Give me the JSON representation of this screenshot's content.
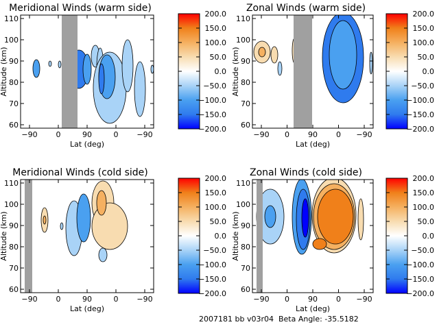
{
  "colorscale": {
    "stops": [
      {
        "v": -200,
        "c": "#0000ff"
      },
      {
        "v": -150,
        "c": "#2f7bee"
      },
      {
        "v": -100,
        "c": "#4aa0f0"
      },
      {
        "v": -50,
        "c": "#a9d3f7"
      },
      {
        "v": 0,
        "c": "#ffffff"
      },
      {
        "v": 50,
        "c": "#f8dcb0"
      },
      {
        "v": 100,
        "c": "#f5b060"
      },
      {
        "v": 150,
        "c": "#f0801a"
      },
      {
        "v": 200,
        "c": "#ff0000"
      }
    ],
    "shade_color": "#a0a0a0"
  },
  "footer": {
    "text": "2007181 bb v03r04  Beta Angle: -35.5182"
  },
  "chart_data": [
    {
      "type": "heatmap",
      "title": "Meridional Winds (warm side)",
      "xlabel": "Lat (deg)",
      "ylabel": "Altitude (km)",
      "x_ticks": [
        "−90",
        "0",
        "90",
        "0",
        "−90"
      ],
      "y_ticks": [
        "60",
        "70",
        "80",
        "90",
        "100",
        "110"
      ],
      "ylim": [
        60,
        110
      ],
      "colorbar_ticks": [
        "200.0",
        "150.0",
        "100.0",
        "50.0",
        "0.0",
        "−50.0",
        "−100.0",
        "−150.0",
        "−200.0"
      ],
      "colorbar_range": [
        -200,
        200
      ],
      "shaded_x_ranges": [
        [
          60,
          83
        ]
      ],
      "blobs": [
        {
          "cx": 53,
          "cy": 100,
          "rx": 5,
          "ry": 13,
          "v": -100
        },
        {
          "cx": 73,
          "cy": 93,
          "rx": 2,
          "ry": 4,
          "v": -50
        },
        {
          "cx": 87,
          "cy": 94,
          "rx": 2,
          "ry": 5,
          "v": -50
        },
        {
          "cx": 100,
          "cy": 92,
          "rx": 2,
          "ry": 5,
          "v": -100
        },
        {
          "cx": 108,
          "cy": 95,
          "rx": 3,
          "ry": 7,
          "v": -50
        },
        {
          "cx": 115,
          "cy": 101,
          "rx": 14,
          "ry": 28,
          "v": -150
        },
        {
          "cx": 127,
          "cy": 101,
          "rx": 6,
          "ry": 22,
          "v": -100
        },
        {
          "cx": 139,
          "cy": 82,
          "rx": 6,
          "ry": 16,
          "v": -50
        },
        {
          "cx": 146,
          "cy": 98,
          "rx": 5,
          "ry": 28,
          "v": -50
        },
        {
          "cx": 160,
          "cy": 128,
          "rx": 24,
          "ry": 52,
          "v": -50
        },
        {
          "cx": 156,
          "cy": 112,
          "rx": 12,
          "ry": 32,
          "v": -100
        },
        {
          "cx": 148,
          "cy": 115,
          "rx": 4,
          "ry": 22,
          "v": -150
        },
        {
          "cx": 186,
          "cy": 96,
          "rx": 8,
          "ry": 38,
          "v": -50
        },
        {
          "cx": 204,
          "cy": 130,
          "rx": 8,
          "ry": 40,
          "v": -50
        },
        {
          "cx": 222,
          "cy": 101,
          "rx": 2,
          "ry": 6,
          "v": -50
        }
      ]
    },
    {
      "type": "heatmap",
      "title": "Zonal Winds (warm side)",
      "xlabel": "Lat (deg)",
      "ylabel": "Altitude (km)",
      "x_ticks": [
        "−90",
        "0",
        "90",
        "0",
        "−90"
      ],
      "y_ticks": [
        "60",
        "70",
        "80",
        "90",
        "100",
        "110"
      ],
      "ylim": [
        60,
        110
      ],
      "colorbar_ticks": [
        "200.0",
        "150.0",
        "100.0",
        "50.0",
        "0.0",
        "−50.0",
        "−100.0",
        "−150.0",
        "−200.0"
      ],
      "colorbar_range": [
        -200,
        200
      ],
      "shaded_x_ranges": [
        [
          60,
          87
        ]
      ],
      "blobs": [
        {
          "cx": 382,
          "cy": 76,
          "rx": 12,
          "ry": 16,
          "v": 50
        },
        {
          "cx": 382,
          "cy": 76,
          "rx": 5,
          "ry": 7,
          "v": 100
        },
        {
          "cx": 400,
          "cy": 80,
          "rx": 5,
          "ry": 12,
          "v": 50
        },
        {
          "cx": 408,
          "cy": 100,
          "rx": 3,
          "ry": 10,
          "v": -50
        },
        {
          "cx": 429,
          "cy": 74,
          "rx": 3,
          "ry": 18,
          "v": 50
        },
        {
          "cx": 435,
          "cy": 100,
          "rx": 4,
          "ry": 25,
          "v": -50
        },
        {
          "cx": 436,
          "cy": 134,
          "rx": 2,
          "ry": 4,
          "v": -50
        },
        {
          "cx": 500,
          "cy": 84,
          "rx": 30,
          "ry": 66,
          "v": -150
        },
        {
          "cx": 500,
          "cy": 80,
          "rx": 20,
          "ry": 50,
          "v": -100
        },
        {
          "cx": 541,
          "cy": 92,
          "rx": 2,
          "ry": 16,
          "v": -50
        }
      ]
    },
    {
      "type": "heatmap",
      "title": "Meridional Winds (cold side)",
      "xlabel": "Lat (deg)",
      "ylabel": "Altitude (km)",
      "x_ticks": [
        "−90",
        "0",
        "90",
        "0",
        "−90"
      ],
      "y_ticks": [
        "60",
        "70",
        "80",
        "90",
        "100",
        "110"
      ],
      "ylim": [
        60,
        110
      ],
      "colorbar_ticks": [
        "200.0",
        "150.0",
        "100.0",
        "50.0",
        "0.0",
        "−50.0",
        "−100.0",
        "−150.0",
        "−200.0"
      ],
      "colorbar_range": [
        -200,
        200
      ],
      "shaded_x_ranges": [
        [
          6,
          17
        ],
        [
          208,
          222
        ]
      ],
      "blobs": [
        {
          "cx": 65,
          "cy": 321,
          "rx": 5,
          "ry": 18,
          "v": 50
        },
        {
          "cx": 65,
          "cy": 321,
          "rx": 2,
          "ry": 6,
          "v": 100
        },
        {
          "cx": 90,
          "cy": 330,
          "rx": 2,
          "ry": 5,
          "v": -50
        },
        {
          "cx": 108,
          "cy": 333,
          "rx": 12,
          "ry": 40,
          "v": -50
        },
        {
          "cx": 122,
          "cy": 318,
          "rx": 10,
          "ry": 35,
          "v": -100
        },
        {
          "cx": 150,
          "cy": 296,
          "rx": 16,
          "ry": 32,
          "v": 50
        },
        {
          "cx": 160,
          "cy": 330,
          "rx": 26,
          "ry": 34,
          "v": 50
        },
        {
          "cx": 148,
          "cy": 296,
          "rx": 7,
          "ry": 18,
          "v": 100
        },
        {
          "cx": 150,
          "cy": 372,
          "rx": 6,
          "ry": 10,
          "v": -50
        }
      ]
    },
    {
      "type": "heatmap",
      "title": "Zonal Winds (cold side)",
      "xlabel": "Lat (deg)",
      "ylabel": "Altitude (km)",
      "x_ticks": [
        "−90",
        "0",
        "90",
        "0",
        "−90"
      ],
      "y_ticks": [
        "60",
        "70",
        "80",
        "90",
        "100",
        "110"
      ],
      "ylim": [
        60,
        110
      ],
      "colorbar_ticks": [
        "200.0",
        "150.0",
        "100.0",
        "50.0",
        "0.0",
        "−50.0",
        "−100.0",
        "−150.0",
        "−200.0"
      ],
      "colorbar_range": [
        -200,
        200
      ],
      "shaded_x_ranges": [
        [
          6,
          15
        ],
        [
          208,
          222
        ]
      ],
      "blobs": [
        {
          "cx": 394,
          "cy": 316,
          "rx": 20,
          "ry": 40,
          "v": -50
        },
        {
          "cx": 394,
          "cy": 316,
          "rx": 8,
          "ry": 16,
          "v": -100
        },
        {
          "cx": 440,
          "cy": 316,
          "rx": 14,
          "ry": 55,
          "v": -100
        },
        {
          "cx": 442,
          "cy": 320,
          "rx": 10,
          "ry": 44,
          "v": -150
        },
        {
          "cx": 445,
          "cy": 318,
          "rx": 5,
          "ry": 28,
          "v": -200
        },
        {
          "cx": 487,
          "cy": 314,
          "rx": 32,
          "ry": 55,
          "v": 50
        },
        {
          "cx": 487,
          "cy": 316,
          "rx": 30,
          "ry": 48,
          "v": 100
        },
        {
          "cx": 489,
          "cy": 316,
          "rx": 26,
          "ry": 40,
          "v": 150
        },
        {
          "cx": 466,
          "cy": 356,
          "rx": 10,
          "ry": 8,
          "v": 150
        },
        {
          "cx": 526,
          "cy": 320,
          "rx": 4,
          "ry": 30,
          "v": 50
        }
      ]
    }
  ]
}
